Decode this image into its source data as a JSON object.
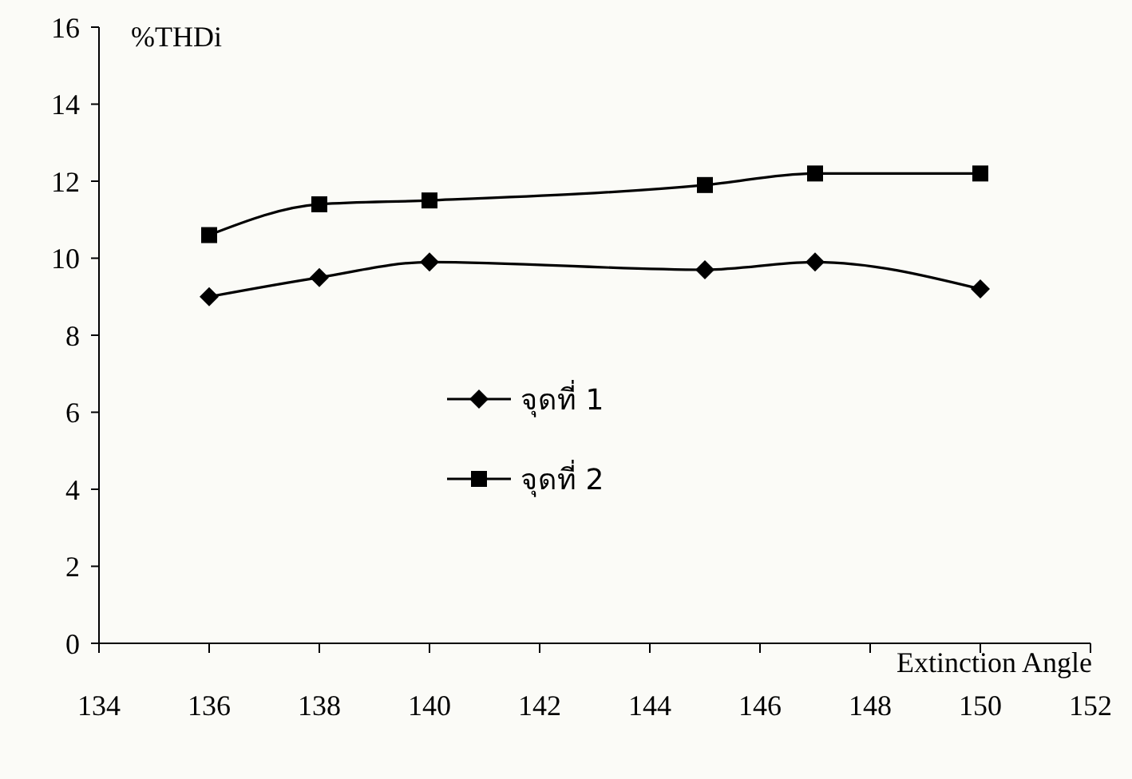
{
  "chart_data": {
    "type": "line",
    "xlabel": "Extinction Angle",
    "ylabel": "%THDi",
    "x": [
      136,
      138,
      140,
      145,
      147,
      150
    ],
    "series": [
      {
        "name": "จุดที่ 1",
        "color": "#000000",
        "marker": "diamond",
        "values": [
          9.0,
          9.5,
          9.9,
          9.7,
          9.9,
          9.2
        ]
      },
      {
        "name": "จุดที่ 2",
        "color": "#000000",
        "marker": "square",
        "values": [
          10.6,
          11.4,
          11.5,
          11.9,
          12.2,
          12.2
        ]
      }
    ],
    "xlim": [
      134,
      152
    ],
    "xticks": [
      134,
      136,
      138,
      140,
      142,
      144,
      146,
      148,
      150,
      152
    ],
    "ylim": [
      0,
      16
    ],
    "yticks": [
      0,
      2,
      4,
      6,
      8,
      10,
      12,
      14,
      16
    ],
    "grid": false,
    "legend": "center",
    "line_style": "solid"
  }
}
